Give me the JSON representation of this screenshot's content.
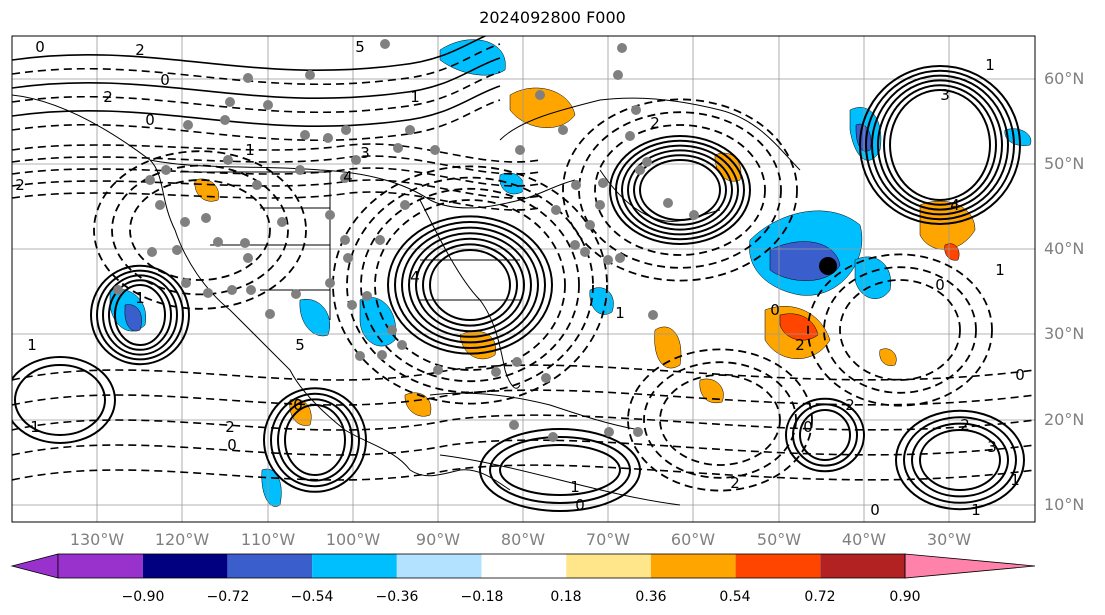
{
  "title": "2024092800 F000",
  "lat_labels": [
    "60°N",
    "50°N",
    "40°N",
    "30°N",
    "20°N",
    "10°N"
  ],
  "lon_labels": [
    "130°W",
    "120°W",
    "110°W",
    "100°W",
    "90°W",
    "80°W",
    "70°W",
    "60°W",
    "50°W",
    "40°W",
    "30°W"
  ],
  "colorbar": {
    "labels": [
      "−0.90",
      "−0.72",
      "−0.54",
      "−0.36",
      "−0.18",
      "0.18",
      "0.36",
      "0.54",
      "0.72",
      "0.90"
    ],
    "colors": [
      "#9932cc",
      "#000080",
      "#3a5fcd",
      "#00bfff",
      "#b2e2ff",
      "#ffffff",
      "#ffe68a",
      "#ffa500",
      "#ff4500",
      "#b22222",
      "#ff82ab"
    ]
  },
  "contour_labels": [
    "0",
    "2",
    "5",
    "1",
    "0",
    "2",
    "1",
    "4",
    "3",
    "2",
    "1",
    "0",
    "1",
    "2",
    "5",
    "4",
    "0",
    "1",
    "3",
    "4",
    "2",
    "0",
    "1",
    "0",
    "2",
    "0",
    "1",
    "2",
    "0",
    "1",
    "2",
    "3",
    "1",
    "0",
    "1",
    "0",
    "2",
    "1",
    "0"
  ],
  "fill_colors": {
    "blue": "#00bfff",
    "dark_blue": "#3a5fcd",
    "orange": "#ffa500",
    "red": "#ff4500"
  },
  "station_color": "#808080",
  "marker_color": "#000000"
}
